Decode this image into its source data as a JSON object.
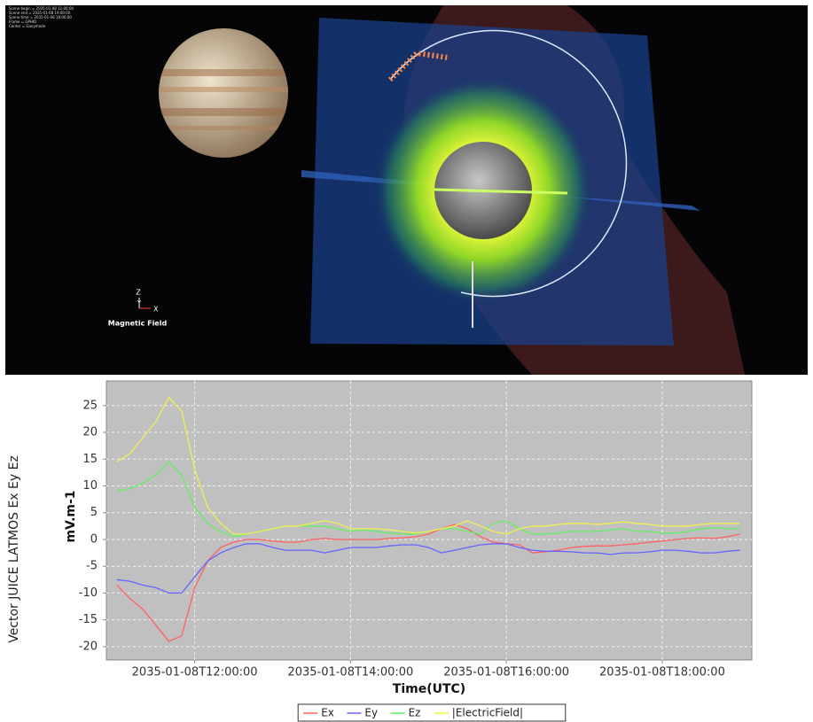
{
  "scene": {
    "info_lines": [
      "Scene begin = 2035-01-08 11:00:00",
      "Scene end = 2035-01-08 19:00:00",
      "Scene time = 2035-01-08 19:00:00",
      "Frame = GPHIO",
      "Center = Ganymede"
    ],
    "axis_z": "Z",
    "axis_y": "Y",
    "axis_x": "X",
    "field_label": "Magnetic Field"
  },
  "chart_data": {
    "type": "line",
    "side_label": "Vector JUICE LATMOS  Ex Ey Ez",
    "y_label": "mV.m-1",
    "x_label": "Time(UTC)",
    "x": [
      "2035-01-08T11:00:00",
      "2035-01-08T11:10:00",
      "2035-01-08T11:20:00",
      "2035-01-08T11:30:00",
      "2035-01-08T11:40:00",
      "2035-01-08T11:50:00",
      "2035-01-08T12:00:00",
      "2035-01-08T12:10:00",
      "2035-01-08T12:20:00",
      "2035-01-08T12:30:00",
      "2035-01-08T12:40:00",
      "2035-01-08T12:50:00",
      "2035-01-08T13:00:00",
      "2035-01-08T13:10:00",
      "2035-01-08T13:20:00",
      "2035-01-08T13:30:00",
      "2035-01-08T13:40:00",
      "2035-01-08T13:50:00",
      "2035-01-08T14:00:00",
      "2035-01-08T14:10:00",
      "2035-01-08T14:20:00",
      "2035-01-08T14:30:00",
      "2035-01-08T14:40:00",
      "2035-01-08T14:50:00",
      "2035-01-08T15:00:00",
      "2035-01-08T15:10:00",
      "2035-01-08T15:20:00",
      "2035-01-08T15:30:00",
      "2035-01-08T15:40:00",
      "2035-01-08T15:50:00",
      "2035-01-08T16:00:00",
      "2035-01-08T16:10:00",
      "2035-01-08T16:20:00",
      "2035-01-08T16:30:00",
      "2035-01-08T16:40:00",
      "2035-01-08T16:50:00",
      "2035-01-08T17:00:00",
      "2035-01-08T17:10:00",
      "2035-01-08T17:20:00",
      "2035-01-08T17:30:00",
      "2035-01-08T17:40:00",
      "2035-01-08T17:50:00",
      "2035-01-08T18:00:00",
      "2035-01-08T18:10:00",
      "2035-01-08T18:20:00",
      "2035-01-08T18:30:00",
      "2035-01-08T18:40:00",
      "2035-01-08T18:50:00",
      "2035-01-08T19:00:00"
    ],
    "series": [
      {
        "name": "Ex",
        "color": "#ff6060",
        "values": [
          -8.5,
          -11,
          -13,
          -16,
          -19,
          -18,
          -9,
          -4,
          -1.5,
          -0.5,
          0,
          0,
          -0.3,
          -0.5,
          -0.5,
          0,
          0.2,
          0,
          0,
          0,
          0,
          0.2,
          0.3,
          0.5,
          1,
          2,
          2.8,
          2,
          0.5,
          -0.5,
          -0.8,
          -1,
          -2.5,
          -2.3,
          -2,
          -1.5,
          -1.3,
          -1.2,
          -1.2,
          -1,
          -0.8,
          -0.5,
          -0.3,
          0,
          0.2,
          0.3,
          0.2,
          0.5,
          1
        ]
      },
      {
        "name": "Ey",
        "color": "#6464ff",
        "values": [
          -7.5,
          -7.8,
          -8.5,
          -9,
          -10,
          -10,
          -7,
          -4,
          -2.5,
          -1.5,
          -0.8,
          -0.8,
          -1.5,
          -2,
          -2,
          -2,
          -2.5,
          -2,
          -1.5,
          -1.5,
          -1.5,
          -1.2,
          -1,
          -1,
          -1.5,
          -2.5,
          -2,
          -1.5,
          -1,
          -0.8,
          -0.8,
          -1.5,
          -2,
          -2.2,
          -2.2,
          -2.3,
          -2.5,
          -2.5,
          -2.8,
          -2.5,
          -2.5,
          -2.3,
          -2,
          -2,
          -2.2,
          -2.5,
          -2.5,
          -2.2,
          -2
        ]
      },
      {
        "name": "Ez",
        "color": "#60f060",
        "values": [
          9,
          9.5,
          10.5,
          12,
          14.5,
          12,
          6,
          3,
          1.5,
          0.5,
          1,
          1.5,
          2,
          2.5,
          2.5,
          2.5,
          2.5,
          2,
          1.5,
          1.8,
          1.5,
          1.2,
          1,
          1,
          1.5,
          2,
          2,
          1.5,
          1,
          3,
          3.5,
          2,
          1,
          1,
          1.2,
          1.5,
          1.5,
          1.5,
          1.8,
          2,
          1.5,
          1.5,
          1.2,
          1.2,
          1.5,
          2,
          2.2,
          2,
          2
        ]
      },
      {
        "name": "|ElectricField|",
        "color": "#f0f050",
        "values": [
          14.5,
          16,
          19,
          22,
          26.5,
          24,
          13,
          6,
          3,
          1,
          1,
          1.5,
          2,
          2.5,
          2.5,
          3,
          3.5,
          3,
          2,
          2,
          2,
          1.8,
          1.5,
          1.2,
          1.5,
          2,
          2.5,
          3.5,
          2.5,
          1.5,
          1,
          2,
          2.5,
          2.5,
          2.8,
          3,
          3,
          2.8,
          3,
          3.3,
          3,
          2.8,
          2.5,
          2.5,
          2.5,
          2.8,
          3,
          3,
          3
        ]
      }
    ],
    "xlim": [
      "2035-01-08T10:52:00",
      "2035-01-08T19:09:00"
    ],
    "xticks": [
      "2035-01-08T12:00:00",
      "2035-01-08T14:00:00",
      "2035-01-08T16:00:00",
      "2035-01-08T18:00:00"
    ],
    "ylim": [
      -22.5,
      29.6
    ],
    "yticks": [
      -20,
      -15,
      -10,
      -5,
      0,
      5,
      10,
      15,
      20,
      25
    ],
    "grid": true,
    "legend": "bottom"
  }
}
